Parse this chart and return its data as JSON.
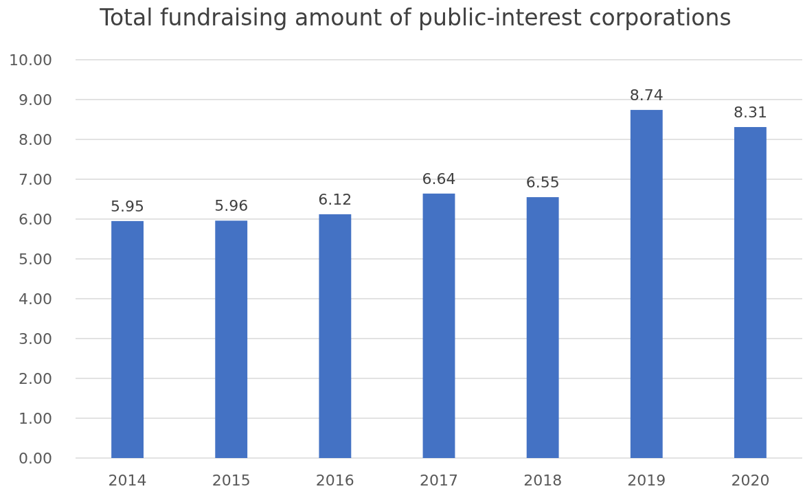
{
  "chart_data": {
    "type": "bar",
    "title": "Total fundraising amount of public-interest corporations",
    "categories": [
      "2014",
      "2015",
      "2016",
      "2017",
      "2018",
      "2019",
      "2020"
    ],
    "values": [
      5.95,
      5.96,
      6.12,
      6.64,
      6.55,
      8.74,
      8.31
    ],
    "color": "#4472c4",
    "ylim": [
      0,
      10
    ],
    "yticks": [
      {
        "value": 0,
        "label": "0.00"
      },
      {
        "value": 1,
        "label": "1.00"
      },
      {
        "value": 2,
        "label": "2.00"
      },
      {
        "value": 3,
        "label": "3.00"
      },
      {
        "value": 4,
        "label": "4.00"
      },
      {
        "value": 5,
        "label": "5.00"
      },
      {
        "value": 6,
        "label": "6.00"
      },
      {
        "value": 7,
        "label": "7.00"
      },
      {
        "value": 8,
        "label": "8.00"
      },
      {
        "value": 9,
        "label": "9.00"
      },
      {
        "value": 10,
        "label": "10.00"
      }
    ],
    "grid": "y",
    "data_labels": true
  }
}
